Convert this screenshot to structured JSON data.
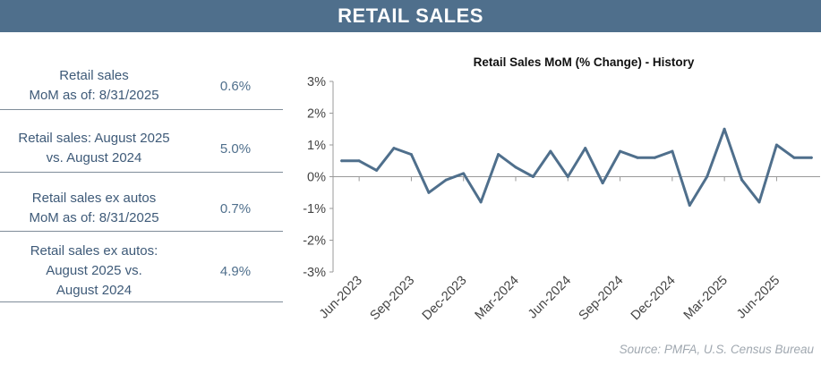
{
  "header": {
    "title": "RETAIL SALES"
  },
  "stats": [
    {
      "label_lines": [
        "Retail sales",
        "MoM as of: 8/31/2025"
      ],
      "value": "0.6%"
    },
    {
      "label_lines": [
        "Retail sales: August 2025",
        "vs. August 2024"
      ],
      "value": "5.0%"
    },
    {
      "label_lines": [
        "Retail sales ex autos",
        "MoM as of: 8/31/2025"
      ],
      "value": "0.7%"
    },
    {
      "label_lines": [
        "Retail sales ex autos:",
        "August 2025 vs.",
        "August 2024"
      ],
      "value": "4.9%"
    }
  ],
  "chart_data": {
    "type": "line",
    "title": "Retail Sales MoM (% Change) - History",
    "xlabel": "",
    "ylabel": "",
    "ylim": [
      -3,
      3
    ],
    "yticks": [
      "3%",
      "2%",
      "1%",
      "0%",
      "-1%",
      "-2%",
      "-3%"
    ],
    "xticks": [
      "Jun-2023",
      "Sep-2023",
      "Dec-2023",
      "Mar-2024",
      "Jun-2024",
      "Sep-2024",
      "Dec-2024",
      "Mar-2025",
      "Jun-2025"
    ],
    "grid": false,
    "series": [
      {
        "color": "#4f6f8c",
        "x": [
          "May-2023",
          "Jun-2023",
          "Jul-2023",
          "Aug-2023",
          "Sep-2023",
          "Oct-2023",
          "Nov-2023",
          "Dec-2023",
          "Jan-2024",
          "Feb-2024",
          "Mar-2024",
          "Apr-2024",
          "May-2024",
          "Jun-2024",
          "Jul-2024",
          "Aug-2024",
          "Sep-2024",
          "Oct-2024",
          "Nov-2024",
          "Dec-2024",
          "Jan-2025",
          "Feb-2025",
          "Mar-2025",
          "Apr-2025",
          "May-2025",
          "Jun-2025",
          "Jul-2025",
          "Aug-2025"
        ],
        "values": [
          0.5,
          0.5,
          0.2,
          0.9,
          0.7,
          -0.5,
          -0.1,
          0.1,
          -0.8,
          0.7,
          0.3,
          0.0,
          0.8,
          0.0,
          0.9,
          -0.2,
          0.8,
          0.6,
          0.6,
          0.8,
          -0.9,
          0.0,
          1.5,
          -0.1,
          -0.8,
          1.0,
          0.6,
          0.6
        ]
      }
    ]
  },
  "source": "Source: PMFA, U.S. Census Bureau"
}
